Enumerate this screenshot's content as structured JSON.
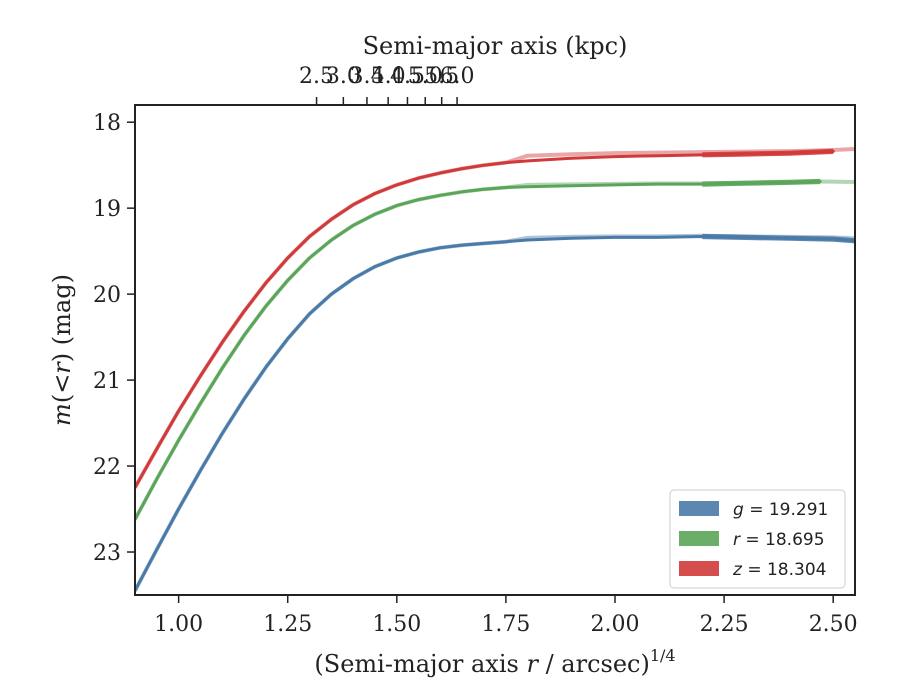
{
  "chart_data": {
    "type": "line",
    "title": "",
    "xlabel_prefix": "(Semi-major axis ",
    "xlabel_var": "r",
    "xlabel_suffix": " / arcsec)",
    "xlabel_sup": "1/4",
    "x2label": "Semi-major axis (kpc)",
    "ylabel_var1": "m",
    "ylabel_mid": "(<",
    "ylabel_var2": "r",
    "ylabel_suffix": ") (mag)",
    "xlim": [
      0.9,
      2.55
    ],
    "ylim": [
      23.5,
      17.8
    ],
    "y_inverted": true,
    "xticks": [
      1.0,
      1.25,
      1.5,
      1.75,
      2.0,
      2.25,
      2.5
    ],
    "xtick_labels": [
      "1.00",
      "1.25",
      "1.50",
      "1.75",
      "2.00",
      "2.25",
      "2.50"
    ],
    "yticks": [
      18,
      19,
      20,
      21,
      22,
      23
    ],
    "ytick_labels": [
      "18",
      "19",
      "20",
      "21",
      "22",
      "23"
    ],
    "x2ticks": [
      2.5,
      3.0,
      3.5,
      4.0,
      4.5,
      5.0,
      5.5,
      6.0
    ],
    "x2tick_labels": [
      "2.5",
      "3.0",
      "3.5",
      "4.0",
      "4.5",
      "5.0",
      "5.5",
      "6.0"
    ],
    "x2_arcsec_per_kpc": 1.2,
    "grid": false,
    "legend_position": "bottom-right",
    "series": [
      {
        "name_var": "g",
        "name_value": "= 19.291",
        "color": "#4a7aa7",
        "asymptote": 19.31,
        "points": [
          [
            0.9,
            23.45
          ],
          [
            0.95,
            22.97
          ],
          [
            1.0,
            22.5
          ],
          [
            1.05,
            22.05
          ],
          [
            1.1,
            21.62
          ],
          [
            1.15,
            21.22
          ],
          [
            1.2,
            20.85
          ],
          [
            1.25,
            20.52
          ],
          [
            1.3,
            20.23
          ],
          [
            1.35,
            20.0
          ],
          [
            1.4,
            19.82
          ],
          [
            1.45,
            19.68
          ],
          [
            1.5,
            19.58
          ],
          [
            1.55,
            19.51
          ],
          [
            1.6,
            19.46
          ],
          [
            1.65,
            19.43
          ],
          [
            1.7,
            19.41
          ],
          [
            1.75,
            19.39
          ],
          [
            1.8,
            19.37
          ],
          [
            1.85,
            19.36
          ],
          [
            1.9,
            19.35
          ],
          [
            2.0,
            19.34
          ],
          [
            2.1,
            19.34
          ],
          [
            2.2,
            19.33
          ],
          [
            2.3,
            19.34
          ],
          [
            2.4,
            19.35
          ],
          [
            2.5,
            19.36
          ],
          [
            2.55,
            19.38
          ]
        ]
      },
      {
        "name_var": "r",
        "name_value": "= 18.695",
        "color": "#5aa55a",
        "asymptote": 18.7,
        "points": [
          [
            0.9,
            22.62
          ],
          [
            0.95,
            22.15
          ],
          [
            1.0,
            21.7
          ],
          [
            1.05,
            21.27
          ],
          [
            1.1,
            20.86
          ],
          [
            1.15,
            20.48
          ],
          [
            1.2,
            20.14
          ],
          [
            1.25,
            19.84
          ],
          [
            1.3,
            19.58
          ],
          [
            1.35,
            19.37
          ],
          [
            1.4,
            19.2
          ],
          [
            1.45,
            19.07
          ],
          [
            1.5,
            18.97
          ],
          [
            1.55,
            18.9
          ],
          [
            1.6,
            18.85
          ],
          [
            1.65,
            18.81
          ],
          [
            1.7,
            18.78
          ],
          [
            1.75,
            18.76
          ],
          [
            1.8,
            18.75
          ],
          [
            1.9,
            18.74
          ],
          [
            2.0,
            18.73
          ],
          [
            2.1,
            18.72
          ],
          [
            2.2,
            18.72
          ],
          [
            2.3,
            18.71
          ],
          [
            2.4,
            18.7
          ],
          [
            2.47,
            18.69
          ]
        ]
      },
      {
        "name_var": "z",
        "name_value": "= 18.304",
        "color": "#d13a3a",
        "asymptote": 18.3,
        "points": [
          [
            0.9,
            22.25
          ],
          [
            0.95,
            21.8
          ],
          [
            1.0,
            21.36
          ],
          [
            1.05,
            20.95
          ],
          [
            1.1,
            20.56
          ],
          [
            1.15,
            20.2
          ],
          [
            1.2,
            19.87
          ],
          [
            1.25,
            19.58
          ],
          [
            1.3,
            19.33
          ],
          [
            1.35,
            19.13
          ],
          [
            1.4,
            18.96
          ],
          [
            1.45,
            18.83
          ],
          [
            1.5,
            18.73
          ],
          [
            1.55,
            18.65
          ],
          [
            1.6,
            18.59
          ],
          [
            1.65,
            18.54
          ],
          [
            1.7,
            18.5
          ],
          [
            1.75,
            18.47
          ],
          [
            1.8,
            18.45
          ],
          [
            1.9,
            18.42
          ],
          [
            2.0,
            18.4
          ],
          [
            2.1,
            18.39
          ],
          [
            2.2,
            18.38
          ],
          [
            2.3,
            18.37
          ],
          [
            2.4,
            18.36
          ],
          [
            2.5,
            18.34
          ]
        ]
      }
    ]
  }
}
